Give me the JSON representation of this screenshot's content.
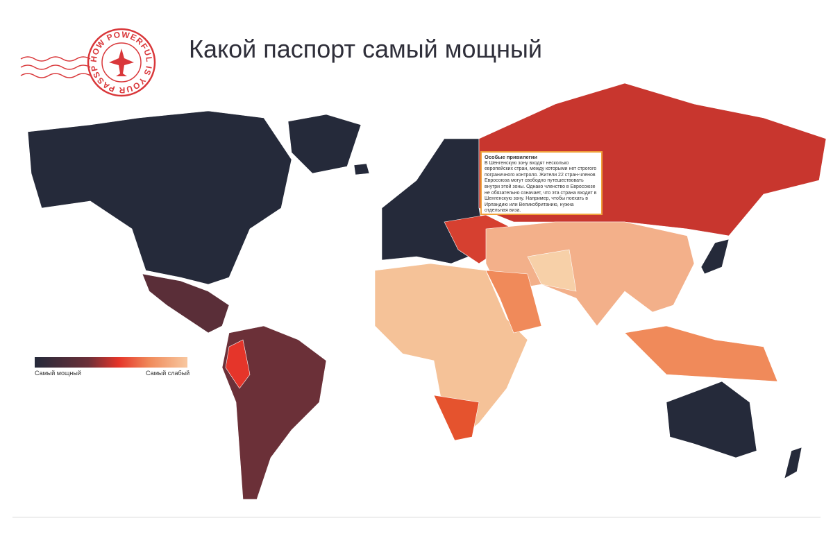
{
  "header": {
    "title": "Какой паспорт самый мощный"
  },
  "stamp": {
    "text": "HOW POWERFUL IS YOUR PASSPORT?"
  },
  "legend": {
    "strongest": "Самый мощный",
    "weakest": "Самый слабый"
  },
  "tooltip": {
    "title": "Особые привилегии",
    "body": "В Шенгенскую зону входят несколько европейских стран, между которыми нет строгого пограничного контроля. Жители 22 стран-членов Евросоюза могут свободно путешествовать внутри этой зоны. Однако членство в Евросоюзе не обязательно означает, что эта страна входит в Шенгенскую зону. Например, чтобы поехать в Ирландию или Великобританию, нужна отдельная виза."
  }
}
